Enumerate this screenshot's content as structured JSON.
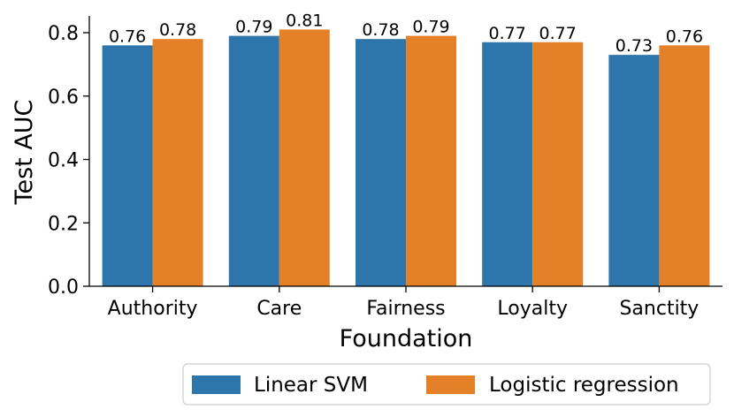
{
  "chart_data": {
    "type": "bar",
    "title": "",
    "xlabel": "Foundation",
    "ylabel": "Test AUC",
    "categories": [
      "Authority",
      "Care",
      "Fairness",
      "Loyalty",
      "Sanctity"
    ],
    "series": [
      {
        "name": "Linear SVM",
        "color": "#2e75ac",
        "values": [
          0.76,
          0.79,
          0.78,
          0.77,
          0.73
        ],
        "labels": [
          "0.76",
          "0.79",
          "0.78",
          "0.77",
          "0.73"
        ]
      },
      {
        "name": "Logistic regression",
        "color": "#e48128",
        "values": [
          0.78,
          0.81,
          0.79,
          0.77,
          0.76
        ],
        "labels": [
          "0.78",
          "0.81",
          "0.79",
          "0.77",
          "0.76"
        ]
      }
    ],
    "ylim": [
      0,
      0.85
    ],
    "yticks": [
      0.0,
      0.2,
      0.4,
      0.6,
      0.8
    ],
    "ytick_labels": [
      "0.0",
      "0.2",
      "0.4",
      "0.6",
      "0.8"
    ],
    "grid": false,
    "legend_position": "bottom-right"
  }
}
